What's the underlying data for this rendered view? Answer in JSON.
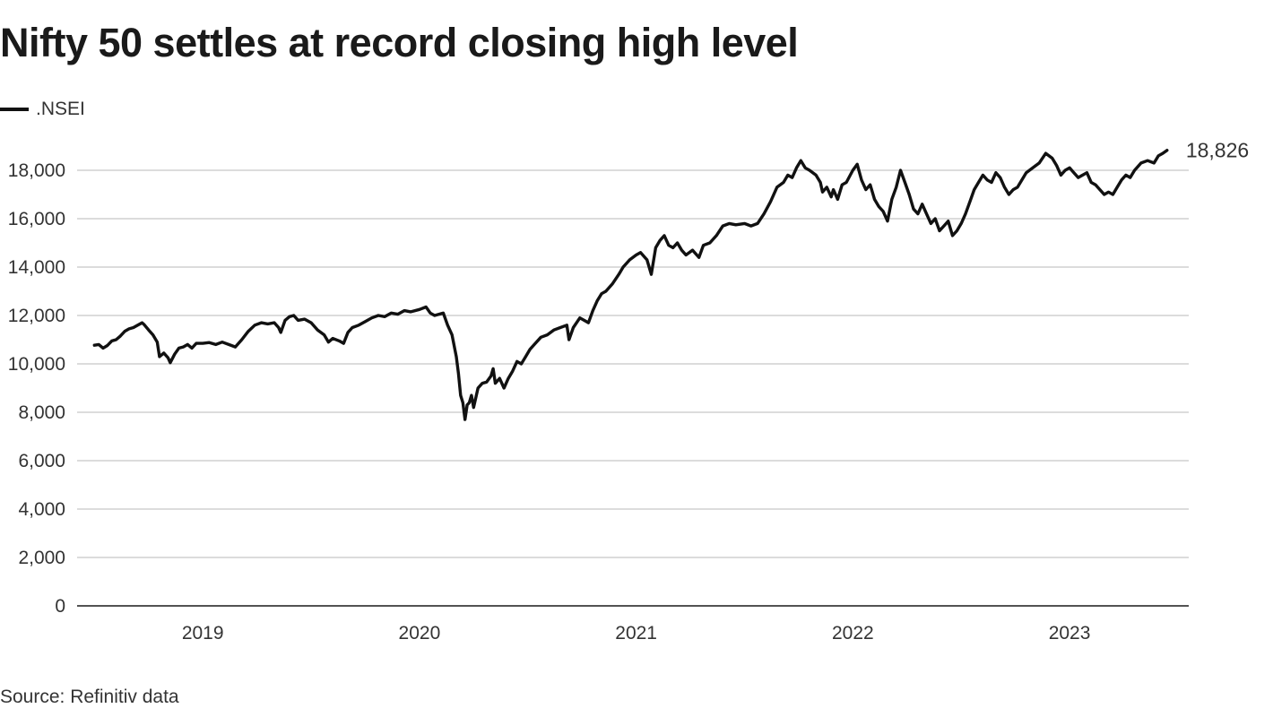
{
  "chart_data": {
    "type": "line",
    "title": "Nifty 50 settles at record closing high level",
    "legend": [
      {
        "name": ".NSEI",
        "color": "#111111"
      }
    ],
    "series": [
      {
        "name": ".NSEI",
        "color": "#111111",
        "points": [
          [
            2018.5,
            10770
          ],
          [
            2018.52,
            10800
          ],
          [
            2018.54,
            10650
          ],
          [
            2018.56,
            10760
          ],
          [
            2018.58,
            10950
          ],
          [
            2018.6,
            11000
          ],
          [
            2018.62,
            11150
          ],
          [
            2018.64,
            11350
          ],
          [
            2018.66,
            11450
          ],
          [
            2018.68,
            11500
          ],
          [
            2018.7,
            11600
          ],
          [
            2018.72,
            11700
          ],
          [
            2018.73,
            11620
          ],
          [
            2018.75,
            11400
          ],
          [
            2018.77,
            11200
          ],
          [
            2018.79,
            10900
          ],
          [
            2018.8,
            10300
          ],
          [
            2018.82,
            10450
          ],
          [
            2018.84,
            10250
          ],
          [
            2018.85,
            10050
          ],
          [
            2018.87,
            10400
          ],
          [
            2018.89,
            10650
          ],
          [
            2018.91,
            10700
          ],
          [
            2018.93,
            10800
          ],
          [
            2018.95,
            10650
          ],
          [
            2018.97,
            10850
          ],
          [
            2019.0,
            10850
          ],
          [
            2019.03,
            10880
          ],
          [
            2019.06,
            10800
          ],
          [
            2019.09,
            10900
          ],
          [
            2019.12,
            10800
          ],
          [
            2019.15,
            10700
          ],
          [
            2019.18,
            11000
          ],
          [
            2019.21,
            11350
          ],
          [
            2019.24,
            11600
          ],
          [
            2019.27,
            11700
          ],
          [
            2019.3,
            11650
          ],
          [
            2019.33,
            11700
          ],
          [
            2019.35,
            11500
          ],
          [
            2019.36,
            11300
          ],
          [
            2019.38,
            11800
          ],
          [
            2019.4,
            11950
          ],
          [
            2019.42,
            12000
          ],
          [
            2019.44,
            11800
          ],
          [
            2019.47,
            11850
          ],
          [
            2019.5,
            11700
          ],
          [
            2019.53,
            11400
          ],
          [
            2019.56,
            11200
          ],
          [
            2019.58,
            10900
          ],
          [
            2019.6,
            11050
          ],
          [
            2019.63,
            10950
          ],
          [
            2019.65,
            10850
          ],
          [
            2019.67,
            11300
          ],
          [
            2019.69,
            11500
          ],
          [
            2019.72,
            11600
          ],
          [
            2019.75,
            11750
          ],
          [
            2019.78,
            11900
          ],
          [
            2019.81,
            12000
          ],
          [
            2019.84,
            11950
          ],
          [
            2019.87,
            12100
          ],
          [
            2019.9,
            12050
          ],
          [
            2019.93,
            12200
          ],
          [
            2019.96,
            12150
          ],
          [
            2020.0,
            12250
          ],
          [
            2020.03,
            12350
          ],
          [
            2020.05,
            12100
          ],
          [
            2020.07,
            12000
          ],
          [
            2020.09,
            12050
          ],
          [
            2020.11,
            12100
          ],
          [
            2020.13,
            11600
          ],
          [
            2020.15,
            11200
          ],
          [
            2020.17,
            10300
          ],
          [
            2020.18,
            9600
          ],
          [
            2020.19,
            8700
          ],
          [
            2020.2,
            8400
          ],
          [
            2020.21,
            7700
          ],
          [
            2020.22,
            8300
          ],
          [
            2020.23,
            8400
          ],
          [
            2020.24,
            8700
          ],
          [
            2020.25,
            8200
          ],
          [
            2020.27,
            9000
          ],
          [
            2020.29,
            9200
          ],
          [
            2020.31,
            9250
          ],
          [
            2020.33,
            9500
          ],
          [
            2020.34,
            9800
          ],
          [
            2020.35,
            9200
          ],
          [
            2020.37,
            9400
          ],
          [
            2020.39,
            9000
          ],
          [
            2020.41,
            9400
          ],
          [
            2020.43,
            9700
          ],
          [
            2020.45,
            10100
          ],
          [
            2020.47,
            10000
          ],
          [
            2020.49,
            10300
          ],
          [
            2020.51,
            10600
          ],
          [
            2020.53,
            10800
          ],
          [
            2020.56,
            11100
          ],
          [
            2020.59,
            11200
          ],
          [
            2020.62,
            11400
          ],
          [
            2020.65,
            11500
          ],
          [
            2020.68,
            11600
          ],
          [
            2020.69,
            11000
          ],
          [
            2020.71,
            11500
          ],
          [
            2020.74,
            11900
          ],
          [
            2020.76,
            11800
          ],
          [
            2020.78,
            11700
          ],
          [
            2020.8,
            12200
          ],
          [
            2020.82,
            12600
          ],
          [
            2020.84,
            12900
          ],
          [
            2020.86,
            13000
          ],
          [
            2020.89,
            13300
          ],
          [
            2020.92,
            13700
          ],
          [
            2020.94,
            14000
          ],
          [
            2020.97,
            14300
          ],
          [
            2021.0,
            14500
          ],
          [
            2021.02,
            14600
          ],
          [
            2021.05,
            14300
          ],
          [
            2021.07,
            13700
          ],
          [
            2021.09,
            14800
          ],
          [
            2021.11,
            15100
          ],
          [
            2021.13,
            15300
          ],
          [
            2021.15,
            14900
          ],
          [
            2021.17,
            14800
          ],
          [
            2021.19,
            15000
          ],
          [
            2021.21,
            14700
          ],
          [
            2021.23,
            14500
          ],
          [
            2021.26,
            14700
          ],
          [
            2021.29,
            14400
          ],
          [
            2021.31,
            14900
          ],
          [
            2021.34,
            15000
          ],
          [
            2021.37,
            15300
          ],
          [
            2021.4,
            15700
          ],
          [
            2021.43,
            15800
          ],
          [
            2021.46,
            15750
          ],
          [
            2021.5,
            15800
          ],
          [
            2021.53,
            15700
          ],
          [
            2021.56,
            15800
          ],
          [
            2021.59,
            16200
          ],
          [
            2021.62,
            16700
          ],
          [
            2021.65,
            17300
          ],
          [
            2021.68,
            17500
          ],
          [
            2021.7,
            17800
          ],
          [
            2021.72,
            17700
          ],
          [
            2021.74,
            18100
          ],
          [
            2021.76,
            18400
          ],
          [
            2021.78,
            18100
          ],
          [
            2021.8,
            18000
          ],
          [
            2021.83,
            17800
          ],
          [
            2021.85,
            17500
          ],
          [
            2021.86,
            17100
          ],
          [
            2021.88,
            17300
          ],
          [
            2021.9,
            16900
          ],
          [
            2021.91,
            17200
          ],
          [
            2021.93,
            16800
          ],
          [
            2021.95,
            17400
          ],
          [
            2021.97,
            17500
          ],
          [
            2022.0,
            18000
          ],
          [
            2022.02,
            18250
          ],
          [
            2022.04,
            17600
          ],
          [
            2022.06,
            17200
          ],
          [
            2022.08,
            17400
          ],
          [
            2022.1,
            16800
          ],
          [
            2022.12,
            16500
          ],
          [
            2022.14,
            16300
          ],
          [
            2022.16,
            15900
          ],
          [
            2022.18,
            16800
          ],
          [
            2022.2,
            17300
          ],
          [
            2022.22,
            18000
          ],
          [
            2022.24,
            17500
          ],
          [
            2022.26,
            17000
          ],
          [
            2022.28,
            16400
          ],
          [
            2022.3,
            16200
          ],
          [
            2022.32,
            16600
          ],
          [
            2022.34,
            16200
          ],
          [
            2022.36,
            15800
          ],
          [
            2022.38,
            16000
          ],
          [
            2022.4,
            15500
          ],
          [
            2022.42,
            15700
          ],
          [
            2022.44,
            15900
          ],
          [
            2022.46,
            15300
          ],
          [
            2022.48,
            15500
          ],
          [
            2022.5,
            15800
          ],
          [
            2022.52,
            16200
          ],
          [
            2022.54,
            16700
          ],
          [
            2022.56,
            17200
          ],
          [
            2022.58,
            17500
          ],
          [
            2022.6,
            17800
          ],
          [
            2022.62,
            17600
          ],
          [
            2022.64,
            17500
          ],
          [
            2022.66,
            17900
          ],
          [
            2022.68,
            17700
          ],
          [
            2022.7,
            17300
          ],
          [
            2022.72,
            17000
          ],
          [
            2022.74,
            17200
          ],
          [
            2022.76,
            17300
          ],
          [
            2022.78,
            17600
          ],
          [
            2022.8,
            17900
          ],
          [
            2022.83,
            18100
          ],
          [
            2022.86,
            18300
          ],
          [
            2022.89,
            18700
          ],
          [
            2022.92,
            18500
          ],
          [
            2022.94,
            18200
          ],
          [
            2022.96,
            17800
          ],
          [
            2022.98,
            18000
          ],
          [
            2023.0,
            18100
          ],
          [
            2023.02,
            17900
          ],
          [
            2023.04,
            17700
          ],
          [
            2023.06,
            17800
          ],
          [
            2023.08,
            17900
          ],
          [
            2023.1,
            17500
          ],
          [
            2023.12,
            17400
          ],
          [
            2023.14,
            17200
          ],
          [
            2023.16,
            17000
          ],
          [
            2023.18,
            17100
          ],
          [
            2023.2,
            17000
          ],
          [
            2023.22,
            17300
          ],
          [
            2023.24,
            17600
          ],
          [
            2023.26,
            17800
          ],
          [
            2023.28,
            17700
          ],
          [
            2023.3,
            18000
          ],
          [
            2023.33,
            18300
          ],
          [
            2023.36,
            18400
          ],
          [
            2023.39,
            18300
          ],
          [
            2023.41,
            18600
          ],
          [
            2023.43,
            18700
          ],
          [
            2023.45,
            18826
          ]
        ]
      }
    ],
    "end_label": "18,826",
    "xlim": [
      2018.42,
      2023.55
    ],
    "ylim": [
      0,
      20000
    ],
    "x_ticks": [
      {
        "value": 2019.0,
        "label": "2019"
      },
      {
        "value": 2020.0,
        "label": "2020"
      },
      {
        "value": 2021.0,
        "label": "2021"
      },
      {
        "value": 2022.0,
        "label": "2022"
      },
      {
        "value": 2023.0,
        "label": "2023"
      }
    ],
    "y_ticks": [
      {
        "value": 0,
        "label": "0"
      },
      {
        "value": 2000,
        "label": "2,000"
      },
      {
        "value": 4000,
        "label": "4,000"
      },
      {
        "value": 6000,
        "label": "6,000"
      },
      {
        "value": 8000,
        "label": "8,000"
      },
      {
        "value": 10000,
        "label": "10,000"
      },
      {
        "value": 12000,
        "label": "12,000"
      },
      {
        "value": 14000,
        "label": "14,000"
      },
      {
        "value": 16000,
        "label": "16,000"
      },
      {
        "value": 18000,
        "label": "18,000"
      }
    ],
    "grid": true,
    "xlabel": "",
    "ylabel": "",
    "source": "Source: Refinitiv data"
  }
}
